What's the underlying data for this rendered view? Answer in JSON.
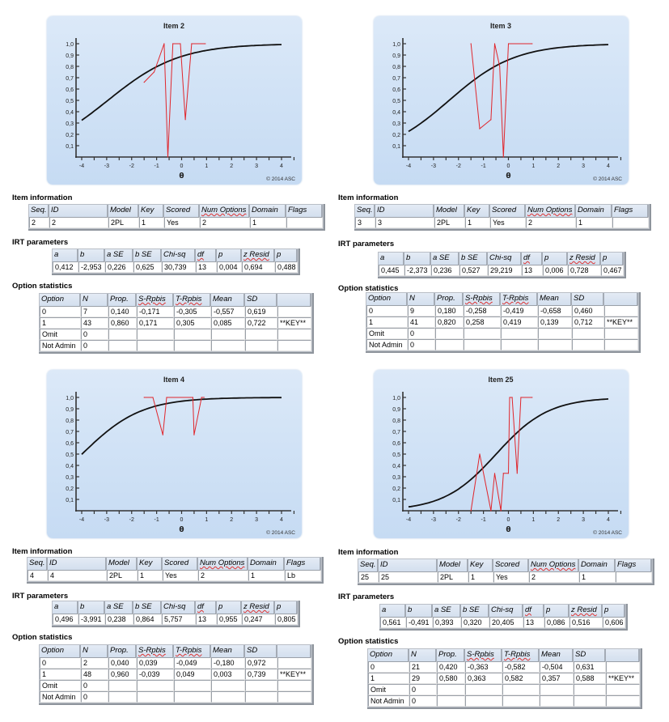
{
  "labels": {
    "item_information": "Item information",
    "irt_parameters": "IRT parameters",
    "option_statistics": "Option statistics",
    "copyright": "© 2014 ASC",
    "x_axis": "θ"
  },
  "info_headers": [
    "Seq.",
    "ID",
    "Model",
    "Key",
    "Scored",
    "Num Options",
    "Domain",
    "Flags"
  ],
  "irt_headers": [
    "a",
    "b",
    "a SE",
    "b SE",
    "Chi-sq",
    "df",
    "p",
    "z Resid",
    "p"
  ],
  "opt_headers": [
    "Option",
    "N",
    "Prop.",
    "S-Rpbis",
    "T-Rpbis",
    "Mean",
    "SD",
    ""
  ],
  "items": [
    {
      "info": [
        "2",
        "2",
        "2PL",
        "1",
        "Yes",
        "2",
        "1",
        ""
      ],
      "irt": [
        "0,412",
        "-2,953",
        "0,226",
        "0,625",
        "30,739",
        "13",
        "0,004",
        "0,694",
        "0,488"
      ],
      "options": [
        [
          "0",
          "7",
          "0,140",
          "-0,171",
          "-0,305",
          "-0,557",
          "0,619",
          ""
        ],
        [
          "1",
          "43",
          "0,860",
          "0,171",
          "0,305",
          "0,085",
          "0,722",
          "**KEY**"
        ],
        [
          "Omit",
          "0",
          "",
          "",
          "",
          "",
          "",
          ""
        ],
        [
          "Not Admin",
          "0",
          "",
          "",
          "",
          "",
          "",
          ""
        ]
      ]
    },
    {
      "info": [
        "3",
        "3",
        "2PL",
        "1",
        "Yes",
        "2",
        "1",
        ""
      ],
      "irt": [
        "0,445",
        "-2,373",
        "0,236",
        "0,527",
        "29,219",
        "13",
        "0,006",
        "0,728",
        "0,467"
      ],
      "options": [
        [
          "0",
          "9",
          "0,180",
          "-0,258",
          "-0,419",
          "-0,658",
          "0,460",
          ""
        ],
        [
          "1",
          "41",
          "0,820",
          "0,258",
          "0,419",
          "0,139",
          "0,712",
          "**KEY**"
        ],
        [
          "Omit",
          "0",
          "",
          "",
          "",
          "",
          "",
          ""
        ],
        [
          "Not Admin",
          "0",
          "",
          "",
          "",
          "",
          "",
          ""
        ]
      ]
    },
    {
      "info": [
        "4",
        "4",
        "2PL",
        "1",
        "Yes",
        "2",
        "1",
        "Lb"
      ],
      "irt": [
        "0,496",
        "-3,991",
        "0,238",
        "0,864",
        "5,757",
        "13",
        "0,955",
        "0,247",
        "0,805"
      ],
      "options": [
        [
          "0",
          "2",
          "0,040",
          "0,039",
          "-0,049",
          "-0,180",
          "0,972",
          ""
        ],
        [
          "1",
          "48",
          "0,960",
          "-0,039",
          "0,049",
          "0,003",
          "0,739",
          "**KEY**"
        ],
        [
          "Omit",
          "0",
          "",
          "",
          "",
          "",
          "",
          ""
        ],
        [
          "Not Admin",
          "0",
          "",
          "",
          "",
          "",
          "",
          ""
        ]
      ]
    },
    {
      "info": [
        "25",
        "25",
        "2PL",
        "1",
        "Yes",
        "2",
        "1",
        ""
      ],
      "irt": [
        "0,561",
        "-0,491",
        "0,393",
        "0,320",
        "20,405",
        "13",
        "0,086",
        "0,516",
        "0,606"
      ],
      "options": [
        [
          "0",
          "21",
          "0,420",
          "-0,363",
          "-0,582",
          "-0,504",
          "0,631",
          ""
        ],
        [
          "1",
          "29",
          "0,580",
          "0,363",
          "0,582",
          "0,357",
          "0,588",
          "**KEY**"
        ],
        [
          "Omit",
          "0",
          "",
          "",
          "",
          "",
          "",
          ""
        ],
        [
          "Not Admin",
          "0",
          "",
          "",
          "",
          "",
          "",
          ""
        ]
      ]
    }
  ],
  "chart_data": [
    {
      "type": "line",
      "title": "Item 2",
      "xlabel": "θ",
      "ylabel": "",
      "xlim": [
        -4,
        4
      ],
      "ylim": [
        0,
        1
      ],
      "xticks": [
        "-4",
        "-3",
        "-2",
        "-1",
        "0",
        "1",
        "2",
        "3",
        "4"
      ],
      "yticks": [
        "0,1",
        "0,2",
        "0,3",
        "0,4",
        "0,5",
        "0,6",
        "0,7",
        "0,8",
        "0,9",
        "1,0"
      ],
      "model_curve": {
        "a": 0.412,
        "b": -2.953,
        "D": 1.7,
        "color": "#111111"
      },
      "empirical": {
        "color": "#e0262c",
        "x": [
          -1.5,
          -1.1,
          -0.7,
          -0.55,
          -0.35,
          -0.05,
          0.15,
          0.4,
          0.95
        ],
        "y": [
          0.66,
          0.75,
          1.0,
          0.0,
          1.0,
          1.0,
          0.33,
          1.0,
          1.0
        ]
      }
    },
    {
      "type": "line",
      "title": "Item 3",
      "xlabel": "θ",
      "ylabel": "",
      "xlim": [
        -4,
        4
      ],
      "ylim": [
        0,
        1
      ],
      "xticks": [
        "-4",
        "-3",
        "-2",
        "-1",
        "0",
        "1",
        "2",
        "3",
        "4"
      ],
      "yticks": [
        "0,1",
        "0,2",
        "0,3",
        "0,4",
        "0,5",
        "0,6",
        "0,7",
        "0,8",
        "0,9",
        "1,0"
      ],
      "model_curve": {
        "a": 0.445,
        "b": -2.373,
        "D": 1.7,
        "color": "#111111"
      },
      "empirical": {
        "color": "#e0262c",
        "x": [
          -1.5,
          -1.15,
          -0.7,
          -0.55,
          -0.35,
          -0.2,
          -0.1,
          0.0,
          0.95
        ],
        "y": [
          1.0,
          0.25,
          0.33,
          1.0,
          0.8,
          0.0,
          0.5,
          1.0,
          1.0
        ]
      }
    },
    {
      "type": "line",
      "title": "Item 4",
      "xlabel": "θ",
      "ylabel": "",
      "xlim": [
        -4,
        4
      ],
      "ylim": [
        0,
        1
      ],
      "xticks": [
        "-4",
        "-3",
        "-2",
        "-1",
        "0",
        "1",
        "2",
        "3",
        "4"
      ],
      "yticks": [
        "0,1",
        "0,2",
        "0,3",
        "0,4",
        "0,5",
        "0,6",
        "0,7",
        "0,8",
        "0,9",
        "1,0"
      ],
      "model_curve": {
        "a": 0.496,
        "b": -3.991,
        "D": 1.7,
        "color": "#111111"
      },
      "empirical": {
        "color": "#e0262c",
        "x": [
          -1.5,
          -1.15,
          -0.75,
          -0.6,
          0.45,
          0.5,
          0.8,
          0.9
        ],
        "y": [
          1.0,
          1.0,
          0.67,
          1.0,
          1.0,
          0.67,
          1.0,
          1.0
        ]
      }
    },
    {
      "type": "line",
      "title": "Item 25",
      "xlabel": "θ",
      "ylabel": "",
      "xlim": [
        -4,
        4
      ],
      "ylim": [
        0,
        1
      ],
      "xticks": [
        "-4",
        "-3",
        "-2",
        "-1",
        "0",
        "1",
        "2",
        "3",
        "4"
      ],
      "yticks": [
        "0,1",
        "0,2",
        "0,3",
        "0,4",
        "0,5",
        "0,6",
        "0,7",
        "0,8",
        "0,9",
        "1,0"
      ],
      "model_curve": {
        "a": 0.561,
        "b": -0.491,
        "D": 1.7,
        "color": "#111111"
      },
      "empirical": {
        "color": "#e0262c",
        "x": [
          -1.5,
          -1.15,
          -0.7,
          -0.55,
          -0.3,
          -0.2,
          0.0,
          0.05,
          0.15,
          0.35,
          0.5,
          0.95
        ],
        "y": [
          0.0,
          0.5,
          0.0,
          0.33,
          0.0,
          0.33,
          0.33,
          1.0,
          1.0,
          0.33,
          1.0,
          1.0
        ]
      }
    }
  ]
}
